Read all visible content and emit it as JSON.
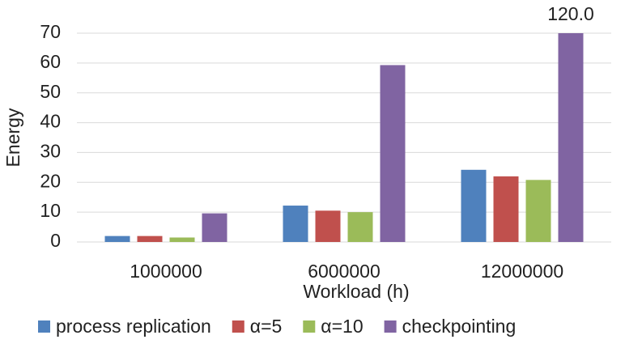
{
  "chart_data": {
    "type": "bar",
    "xlabel": "Workload (h)",
    "ylabel": "Energy",
    "categories": [
      "1000000",
      "6000000",
      "12000000"
    ],
    "series": [
      {
        "name": "process replication",
        "color": "#4f81bd",
        "values": [
          2.0,
          12.2,
          24.2
        ]
      },
      {
        "name": "α=5",
        "color": "#c0504d",
        "values": [
          2.0,
          10.5,
          22.0
        ]
      },
      {
        "name": "α=10",
        "color": "#9bbb59",
        "values": [
          1.5,
          10.0,
          20.8
        ]
      },
      {
        "name": "checkpointing",
        "color": "#8064a2",
        "values": [
          9.6,
          59.3,
          120
        ],
        "value_labels": [
          null,
          null,
          "120.0"
        ]
      }
    ],
    "ylim": [
      0,
      70
    ],
    "yticks": [
      0,
      10,
      20,
      30,
      40,
      50,
      60,
      70
    ],
    "grid": true,
    "legend": "bottom"
  }
}
